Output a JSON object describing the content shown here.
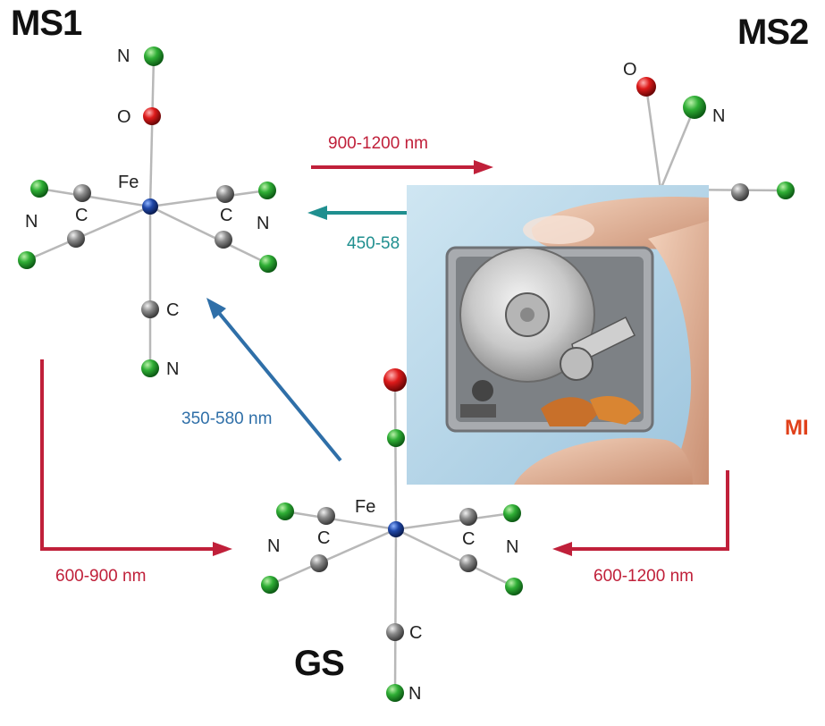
{
  "states": {
    "ms1": "MS1",
    "ms2": "MS2",
    "gs": "GS",
    "ms_partial": "MI"
  },
  "atoms": {
    "fe": "Fe",
    "n": "N",
    "o": "O",
    "c": "C"
  },
  "transitions": {
    "gs_to_ms2_red": "900-1200 nm",
    "ms2_to_ms1_teal": "450-58",
    "gs_to_ms1_blue": "350-580 nm",
    "ms1_to_gs_red": "600-900 nm",
    "ms2_to_gs_red": "600-1200 nm"
  },
  "colors": {
    "arrow_red": "#c0203a",
    "arrow_teal": "#1f8f8f",
    "arrow_blue": "#2f6fa8",
    "iron": "#1f3f8f",
    "oxygen": "#d01818",
    "nitrogen": "#1f9a2a",
    "carbon": "#808080"
  },
  "photo": {
    "subject": "hard-disk-drive-between-fingers"
  }
}
